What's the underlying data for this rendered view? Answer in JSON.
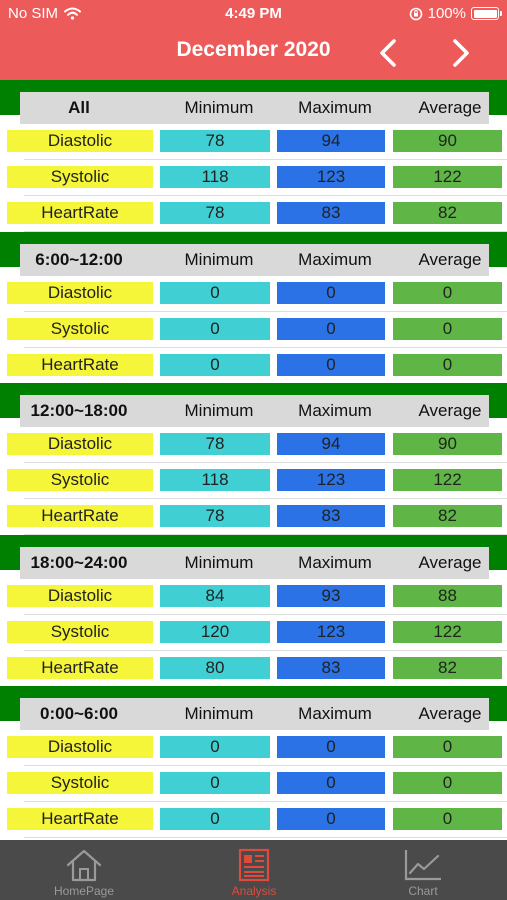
{
  "status": {
    "carrier": "No SIM",
    "time": "4:49 PM",
    "battery": "100%"
  },
  "header": {
    "title": "December 2020",
    "prev_icon": "chevron-left-icon",
    "next_icon": "chevron-right-icon"
  },
  "table_columns": {
    "min": "Minimum",
    "max": "Maximum",
    "avg": "Average"
  },
  "sections": [
    {
      "title": "All",
      "rows": [
        {
          "label": "Diastolic",
          "min": "78",
          "max": "94",
          "avg": "90"
        },
        {
          "label": "Systolic",
          "min": "118",
          "max": "123",
          "avg": "122"
        },
        {
          "label": "HeartRate",
          "min": "78",
          "max": "83",
          "avg": "82"
        }
      ]
    },
    {
      "title": "6:00~12:00",
      "rows": [
        {
          "label": "Diastolic",
          "min": "0",
          "max": "0",
          "avg": "0"
        },
        {
          "label": "Systolic",
          "min": "0",
          "max": "0",
          "avg": "0"
        },
        {
          "label": "HeartRate",
          "min": "0",
          "max": "0",
          "avg": "0"
        }
      ]
    },
    {
      "title": "12:00~18:00",
      "rows": [
        {
          "label": "Diastolic",
          "min": "78",
          "max": "94",
          "avg": "90"
        },
        {
          "label": "Systolic",
          "min": "118",
          "max": "123",
          "avg": "122"
        },
        {
          "label": "HeartRate",
          "min": "78",
          "max": "83",
          "avg": "82"
        }
      ]
    },
    {
      "title": "18:00~24:00",
      "rows": [
        {
          "label": "Diastolic",
          "min": "84",
          "max": "93",
          "avg": "88"
        },
        {
          "label": "Systolic",
          "min": "120",
          "max": "123",
          "avg": "122"
        },
        {
          "label": "HeartRate",
          "min": "80",
          "max": "83",
          "avg": "82"
        }
      ]
    },
    {
      "title": "0:00~6:00",
      "rows": [
        {
          "label": "Diastolic",
          "min": "0",
          "max": "0",
          "avg": "0"
        },
        {
          "label": "Systolic",
          "min": "0",
          "max": "0",
          "avg": "0"
        },
        {
          "label": "HeartRate",
          "min": "0",
          "max": "0",
          "avg": "0"
        }
      ]
    }
  ],
  "tabs": [
    {
      "label": "HomePage",
      "icon": "home-icon",
      "active": false
    },
    {
      "label": "Analysis",
      "icon": "analysis-icon",
      "active": true
    },
    {
      "label": "Chart",
      "icon": "chart-icon",
      "active": false
    }
  ],
  "colors": {
    "header": "#ec5a5a",
    "section_band": "#008000",
    "column_header": "#d9d9d9",
    "label_cell": "#f5f53a",
    "min_cell": "#40cfd2",
    "max_cell": "#2a72e5",
    "avg_cell": "#5fb647",
    "tabbar": "#4a4a4a",
    "tab_active": "#e04a3d"
  }
}
